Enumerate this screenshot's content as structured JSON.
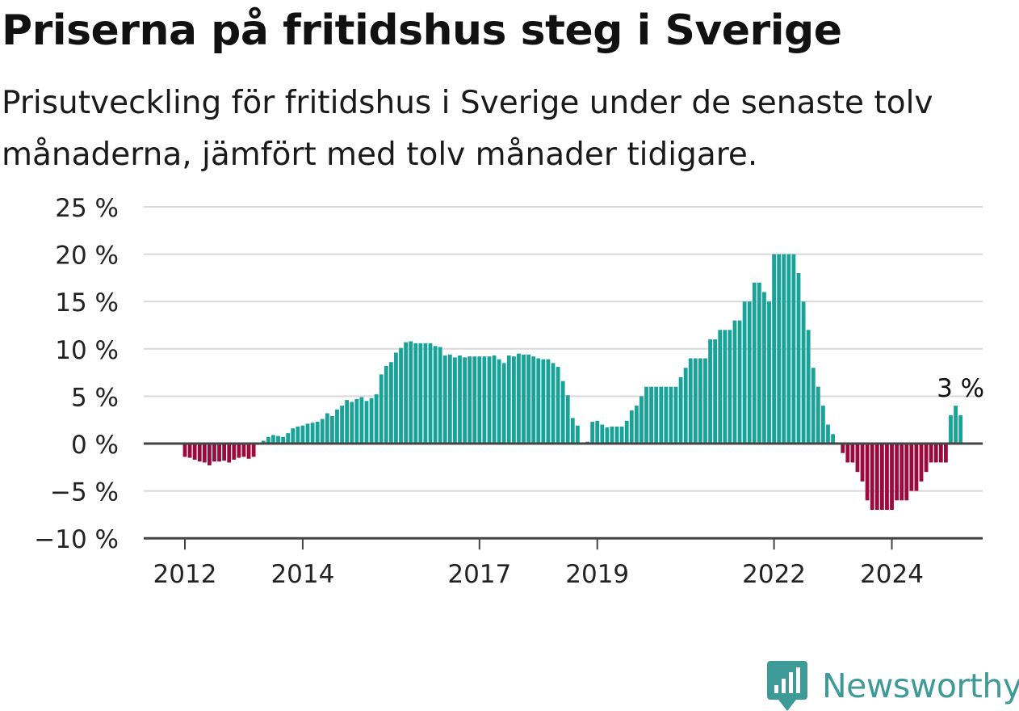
{
  "header": {
    "title": "Priserna på fritidshus steg i Sverige",
    "subtitle": "Prisutveckling för fritidshus i Sverige under de senaste tolv månaderna, jämfört med tolv månader tidigare."
  },
  "brand": {
    "name": "Newsworthy",
    "icon": "chart-bubble-icon"
  },
  "colors": {
    "positive": "#17a398",
    "negative": "#9b0a3d",
    "grid": "#d9d9d9",
    "axis": "#444444"
  },
  "chart_data": {
    "type": "bar",
    "title": "Priserna på fritidshus steg i Sverige",
    "xlabel": "",
    "ylabel": "",
    "ylim": [
      -10,
      25
    ],
    "y_ticks": [
      {
        "value": 25,
        "label": "25 %"
      },
      {
        "value": 20,
        "label": "20 %"
      },
      {
        "value": 15,
        "label": "15 %"
      },
      {
        "value": 10,
        "label": "10 %"
      },
      {
        "value": 5,
        "label": "5 %"
      },
      {
        "value": 0,
        "label": "0 %"
      },
      {
        "value": -5,
        "label": "−5 %"
      },
      {
        "value": -10,
        "label": "−10 %"
      }
    ],
    "x_ticks": [
      {
        "date": "2012-01",
        "label": "2012"
      },
      {
        "date": "2014-01",
        "label": "2014"
      },
      {
        "date": "2017-01",
        "label": "2017"
      },
      {
        "date": "2019-01",
        "label": "2019"
      },
      {
        "date": "2022-01",
        "label": "2022"
      },
      {
        "date": "2024-01",
        "label": "2024"
      }
    ],
    "grid": true,
    "annotation": {
      "date": "2025-03",
      "label": "3 %"
    },
    "dates": [
      "2011-08",
      "2011-09",
      "2011-10",
      "2011-11",
      "2011-12",
      "2012-01",
      "2012-02",
      "2012-03",
      "2012-04",
      "2012-05",
      "2012-06",
      "2012-07",
      "2012-08",
      "2012-09",
      "2012-10",
      "2012-11",
      "2012-12",
      "2013-01",
      "2013-02",
      "2013-03",
      "2013-04",
      "2013-05",
      "2013-06",
      "2013-07",
      "2013-08",
      "2013-09",
      "2013-10",
      "2013-11",
      "2013-12",
      "2014-01",
      "2014-02",
      "2014-03",
      "2014-04",
      "2014-05",
      "2014-06",
      "2014-07",
      "2014-08",
      "2014-09",
      "2014-10",
      "2014-11",
      "2014-12",
      "2015-01",
      "2015-02",
      "2015-03",
      "2015-04",
      "2015-05",
      "2015-06",
      "2015-07",
      "2015-08",
      "2015-09",
      "2015-10",
      "2015-11",
      "2015-12",
      "2016-01",
      "2016-02",
      "2016-03",
      "2016-04",
      "2016-05",
      "2016-06",
      "2016-07",
      "2016-08",
      "2016-09",
      "2016-10",
      "2016-11",
      "2016-12",
      "2017-01",
      "2017-02",
      "2017-03",
      "2017-04",
      "2017-05",
      "2017-06",
      "2017-07",
      "2017-08",
      "2017-09",
      "2017-10",
      "2017-11",
      "2017-12",
      "2018-01",
      "2018-02",
      "2018-03",
      "2018-04",
      "2018-05",
      "2018-06",
      "2018-07",
      "2018-08",
      "2018-09",
      "2018-10",
      "2018-11",
      "2018-12",
      "2019-01",
      "2019-02",
      "2019-03",
      "2019-04",
      "2019-05",
      "2019-06",
      "2019-07",
      "2019-08",
      "2019-09",
      "2019-10",
      "2019-11",
      "2019-12",
      "2020-01",
      "2020-02",
      "2020-03",
      "2020-04",
      "2020-05",
      "2020-06",
      "2020-07",
      "2020-08",
      "2020-09",
      "2020-10",
      "2020-11",
      "2020-12",
      "2021-01",
      "2021-02",
      "2021-03",
      "2021-04",
      "2021-05",
      "2021-06",
      "2021-07",
      "2021-08",
      "2021-09",
      "2021-10",
      "2021-11",
      "2021-12",
      "2022-01",
      "2022-02",
      "2022-03",
      "2022-04",
      "2022-05",
      "2022-06",
      "2022-07",
      "2022-08",
      "2022-09",
      "2022-10",
      "2022-11",
      "2022-12",
      "2023-01",
      "2023-02",
      "2023-03",
      "2023-04",
      "2023-05",
      "2023-06",
      "2023-07",
      "2023-08",
      "2023-09",
      "2023-10",
      "2023-11",
      "2023-12",
      "2024-01",
      "2024-02",
      "2024-03",
      "2024-04",
      "2024-05",
      "2024-06",
      "2024-07",
      "2024-08",
      "2024-09",
      "2024-10",
      "2024-11",
      "2024-12",
      "2025-01",
      "2025-02",
      "2025-03"
    ],
    "values": [
      null,
      null,
      null,
      null,
      null,
      -1.4,
      -1.5,
      -1.7,
      -1.9,
      -2.0,
      -2.3,
      -1.9,
      -1.9,
      -1.8,
      -2.0,
      -1.7,
      -1.5,
      -1.4,
      -1.6,
      -1.4,
      null,
      0.3,
      0.7,
      0.9,
      0.8,
      0.7,
      1.1,
      1.6,
      1.8,
      1.9,
      2.1,
      2.2,
      2.3,
      2.6,
      3.2,
      2.9,
      3.6,
      4.0,
      4.6,
      4.4,
      4.7,
      4.9,
      4.5,
      4.8,
      5.2,
      7.3,
      8.2,
      8.6,
      9.6,
      10.1,
      10.7,
      10.8,
      10.6,
      10.6,
      10.6,
      10.6,
      10.3,
      10.2,
      9.3,
      9.4,
      9.1,
      9.3,
      9.1,
      9.2,
      9.2,
      9.2,
      9.2,
      9.2,
      9.3,
      8.9,
      8.5,
      9.3,
      9.2,
      9.5,
      9.4,
      9.4,
      9.2,
      9.0,
      8.9,
      8.9,
      8.5,
      8.1,
      6.6,
      5.1,
      2.7,
      1.9,
      null,
      0.2,
      2.3,
      2.4,
      2.0,
      1.7,
      1.8,
      1.8,
      1.8,
      2.4,
      3.5,
      4.0,
      5.0,
      6.0,
      6.0,
      6.0,
      6.0,
      6.0,
      6.0,
      6.0,
      7.0,
      8.0,
      9.0,
      9.0,
      9.0,
      9.0,
      11.0,
      11.0,
      12.0,
      12.0,
      12.0,
      13.0,
      13.0,
      15.0,
      15.0,
      17.0,
      17.0,
      16.0,
      15.0,
      20.0,
      20.0,
      20.0,
      20.0,
      20.0,
      18.0,
      15.0,
      12.0,
      8.0,
      6.0,
      4.0,
      2.0,
      1.0,
      null,
      -1.0,
      -2.0,
      -2.0,
      -3.0,
      -4.0,
      -6.0,
      -7.0,
      -7.0,
      -7.0,
      -7.0,
      -7.0,
      -6.0,
      -6.0,
      -6.0,
      -5.0,
      -5.0,
      -4.0,
      -3.0,
      -2.0,
      -2.0,
      -2.0,
      -2.0,
      3.0,
      4.0,
      3.0
    ]
  }
}
